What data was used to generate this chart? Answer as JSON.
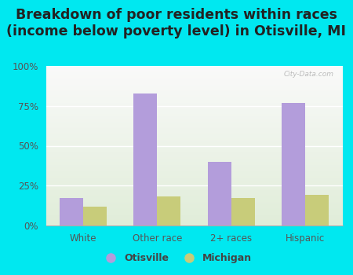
{
  "title": "Breakdown of poor residents within races\n(income below poverty level) in Otisville, MI",
  "categories": [
    "White",
    "Other race",
    "2+ races",
    "Hispanic"
  ],
  "otisville_values": [
    17,
    83,
    40,
    77
  ],
  "michigan_values": [
    12,
    18,
    17,
    19
  ],
  "otisville_color": "#b39ddb",
  "michigan_color": "#c8cc7a",
  "background_outer": "#00e8f0",
  "ylim": [
    0,
    100
  ],
  "yticks": [
    0,
    25,
    50,
    75,
    100
  ],
  "ytick_labels": [
    "0%",
    "25%",
    "50%",
    "75%",
    "100%"
  ],
  "title_fontsize": 12.5,
  "legend_labels": [
    "Otisville",
    "Michigan"
  ],
  "bar_width": 0.32,
  "watermark": "City-Data.com"
}
